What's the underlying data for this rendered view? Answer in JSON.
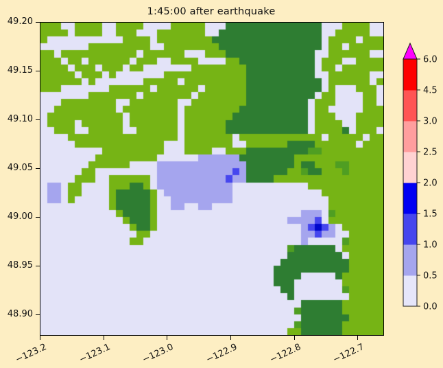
{
  "title": "1:45:00 after earthquake",
  "axes": {
    "x": {
      "min": -123.2,
      "max": -122.6606,
      "ticks": [
        -123.2,
        -123.1,
        -123.0,
        -122.9,
        -122.8,
        -122.7
      ],
      "labels": [
        "−123.2",
        "−123.1",
        "−123.0",
        "−122.9",
        "−122.8",
        "−122.7"
      ]
    },
    "y": {
      "min": 48.8796,
      "max": 49.2,
      "ticks": [
        49.2,
        49.15,
        49.1,
        49.05,
        49.0,
        48.95,
        48.9
      ],
      "labels": [
        "49.20",
        "49.15",
        "49.10",
        "49.05",
        "49.00",
        "48.95",
        "48.90"
      ]
    }
  },
  "colorbar": {
    "boundary_labels_bottom_to_top": [
      "0.0",
      "0.5",
      "1.0",
      "1.5",
      "2.0",
      "2.5",
      "3.0",
      "4.5",
      "6.0"
    ],
    "segment_colors_bottom_to_top": [
      "#e6e6fa",
      "#a5a5ee",
      "#4646ee",
      "#0000f2",
      "#ffd2d2",
      "#ff9e9e",
      "#ff5454",
      "#fe0000"
    ],
    "over_color": "#ff00ff",
    "outline_color": "#1a1a1a"
  },
  "chart_data": {
    "type": "heatmap",
    "title": "1:45:00 after earthquake",
    "xlabel": "",
    "ylabel": "",
    "x_range": [
      -123.2,
      -122.6606
    ],
    "y_range": [
      48.8796,
      49.2
    ],
    "grid_on": false,
    "colorbar_levels": [
      0.0,
      0.5,
      1.0,
      1.5,
      2.0,
      2.5,
      3.0,
      4.5,
      6.0
    ],
    "colorbar_extend_above": 6.0,
    "figure_background": "#fdeec3",
    "palette": {
      ".": {
        "color": "#e3e3f8",
        "label": "water/low 0.0-0.5"
      },
      "p": {
        "color": "#a5a5ee",
        "label": "water 0.5-1.0"
      },
      "b": {
        "color": "#4646ee",
        "label": "water 1.0-1.5"
      },
      "B": {
        "color": "#0008cc",
        "label": "water 1.5-2.0"
      },
      "g": {
        "color": "#76b415",
        "label": "land low (yellow-green)"
      },
      "m": {
        "color": "#4f9e22",
        "label": "land mid (green)"
      },
      "G": {
        "color": "#2e7d32",
        "label": "land high (dark green)"
      }
    },
    "grid_cols": 50,
    "grid_rows_chars": [
      "ggg..gggg..gggg....ggggg...GGGGGGGGGGGGGG...gggg..",
      "gggg.gggg..ggg...ggggggg..GGGGGGGGGGGGGGG..ggggg..",
      "g...........gggg.ggggggggGGGGGGGGGGGGGGGG.gggg.ggg",
      ".......ggggggggg..ggggggggGGGGGGGGGGGGGGG.gg.ggggg",
      "gg.ggggggggggg.gggggg...gggGGGGGGGGGGGGG..gggggg..",
      "ggg.gg.gggggg.ggg..gggg....ggGGGGGGGGGGG.ggg..gggg",
      "gggg.ggg.ggg.gg.......ggggggggGGGGGGGGGG.gg.gggggg",
      "ggggg.ggg.g.......ggggggggggggGGGGGGGGGG..gggggg..",
      "gggggg.g.......ggggg.gggggggggGGGGGGGGGGG.gggggg.g",
      "ggg.......gggggg.gggggg.ggggggGGGGGGGGGGG.g...ggg.",
      ".......ggggggg.ggggggg.gggggggGGGGGGGGGG.gg....gg.",
      "...gggggggg..ggggggg..ggggggggGGGGGGGGG.ggg....gg.",
      "..ggggggggg.gggggggg.ggggggggGGGGGGGGGG.gg.....ggg",
      ".ggggggggggg.ggggggg.gggggggGGGGGGGGGGG.ggg...gggg",
      ".gggg.gggggg.ggggggg.ggggggGGGGGGGGGGGG.gggg..gggg",
      "..ggg..ggggg..gggggg.ggggggGGGGGGGGGGGG.ggggG.ggg.",
      "....gggggggggggggggg.ggggggg.gggggggggggg.ggggg.gg",
      ".....ggggggggggggg...ggggggg..ggggggGGGGgggggg.ggg",
      ".........ggggggggg...gggg..gggGGGGGGGGGmmggggggggg",
      "........ggggggggg......ppppppGGGGGGGGggggggggggggg",
      ".......gggggg....pppppppppppppGGGGGGGgGGgggmmggggg",
      "......gg.........pppppppppppbpGGGGGGggmGGgggmggggg",
      ".....ggg..gggggg.ppppppppppbppGGGGgggggggggggggggg",
      ".pp.gg....gggGGg.ppppppppppp...........ggggggggggg",
      ".pp.gg....gGGGGGg.pppppppppp.............ggggggggg",
      ".pp.g.....gGGGGGg..ppppppppp..............gggggggg",
      "..........gGGGGGg..pp..pp.................gggggggg",
      "...........gGGGGg.....................ppp.mggggggg",
      "............gGGGg...................ppppb.gggggggg",
      ".............gGGg.....................pbBbp.gggggg",
      "..............gg......................ppbpp..ggggg",
      ".............gg.......................p.....mggggg",
      "....................................mGGGGGG.gggggg",
      "....................................GGGGGGGG.ggggg",
      "...................................GGGGGGGGGGggggg",
      "..................................GGGGGGGGGGGggggg",
      "..................................GGGG.....Ggggggg",
      "..................................GGG.......gggggg",
      "...................................GG.......mggggg",
      "....................................G........ggggg",
      "......................................GGGGGGgggggg",
      ".....................................mGGGGGGgggggg",
      "......................................GGGGGGGggggg",
      ".....................................mGGGGGGgggggg",
      "....................................ggGGGGGGgggggg"
    ]
  }
}
